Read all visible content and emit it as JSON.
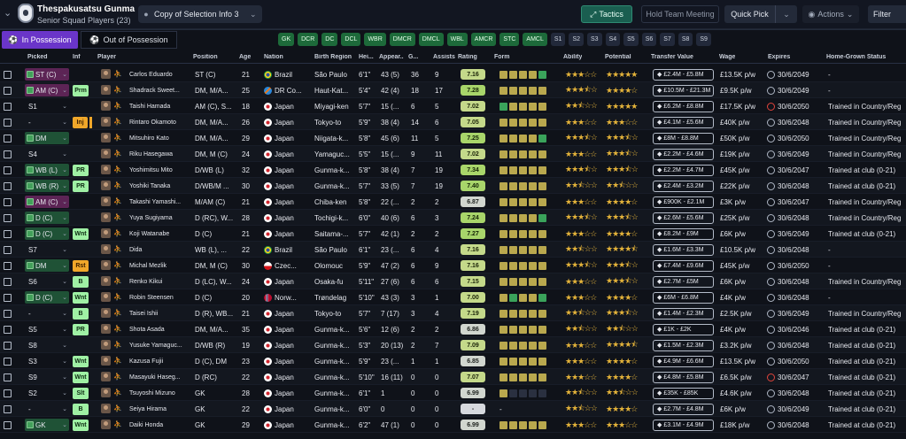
{
  "header": {
    "club": "Thespakusatsu Gunma",
    "squad": "Senior Squad Players (23)",
    "view_selector": "Copy of Selection Info 3",
    "tactics": "Tactics",
    "hold_meeting": "Hold Team Meeting",
    "quick_pick": "Quick Pick",
    "actions": "Actions",
    "filter": "Filter"
  },
  "tabs": {
    "in_possession": "In Possession",
    "out_possession": "Out of Possession"
  },
  "positions_green": [
    "GK",
    "DCR",
    "DC",
    "DCL",
    "WBR",
    "DMCR",
    "DMCL",
    "WBL",
    "AMCR",
    "STC",
    "AMCL"
  ],
  "slots": [
    "S1",
    "S2",
    "S3",
    "S4",
    "S5",
    "S6",
    "S7",
    "S8",
    "S9"
  ],
  "columns": {
    "picked": "Picked",
    "inf": "Inf",
    "player": "Player",
    "position": "Position",
    "age": "Age",
    "nation": "Nation",
    "birth": "Birth Region",
    "height": "Hei...",
    "apps": "Appear...",
    "goals": "G...",
    "assists": "Assists",
    "rating": "Rating",
    "form": "Form",
    "ability": "Ability",
    "potential": "Potential",
    "value": "Transfer Value",
    "wage": "Wage",
    "expires": "Expires",
    "hg": "Home-Grown Status"
  },
  "colors": {
    "ok": "#3aa35b",
    "pick_purple": "#5c2455",
    "pick_green": "#1f5236",
    "inf_green": "#9ff0a4",
    "inf_orange": "#f0a72a",
    "tactics_teal": "#1a5e50",
    "tab_purple": "#6a35c9"
  },
  "rows": [
    {
      "picked": "ST (C)",
      "pick_style": "purple",
      "inf": "",
      "name": "Carlos Eduardo",
      "pos": "ST (C)",
      "age": "21",
      "nation": "Brazil",
      "flag": "br",
      "birth": "São Paulo",
      "height": "6'1\"",
      "apps": "43 (5)",
      "goals": "36",
      "assists": "9",
      "rating": "7.16",
      "form": [
        "y",
        "y",
        "y",
        "y",
        "g"
      ],
      "ab": 3,
      "pot": 5,
      "value": "£2.4M - £5.8M",
      "wage": "£13.5K p/w",
      "exp": "30/6/2049",
      "exp_red": false,
      "hg": "-"
    },
    {
      "picked": "AM (C)",
      "pick_style": "purple",
      "inf": "Prm",
      "name": "Shadrack Sweet...",
      "pos": "DM, M/A...",
      "age": "25",
      "nation": "DR Co...",
      "flag": "cd",
      "birth": "Haut-Kat...",
      "height": "5'4\"",
      "apps": "42 (4)",
      "goals": "18",
      "assists": "17",
      "rating": "7.28",
      "form": [
        "y",
        "y",
        "y",
        "y",
        "y"
      ],
      "ab": 3.5,
      "pot": 4,
      "value": "£10.5M - £21.3M",
      "wage": "£9.5K p/w",
      "exp": "30/6/2049",
      "exp_red": false,
      "hg": "-"
    },
    {
      "picked": "S1",
      "pick_style": "none",
      "inf": "",
      "name": "Taishi Hamada",
      "pos": "AM (C), S...",
      "age": "18",
      "nation": "Japan",
      "flag": "jp",
      "birth": "Miyagi-ken",
      "height": "5'7\"",
      "apps": "15 (...",
      "goals": "6",
      "assists": "5",
      "rating": "7.02",
      "form": [
        "g",
        "y",
        "y",
        "y",
        "y"
      ],
      "ab": 2.5,
      "pot": 5,
      "value": "£6.2M - £8.8M",
      "wage": "£17.5K p/w",
      "exp": "30/6/2050",
      "exp_red": true,
      "hg": "Trained in Country/Reg"
    },
    {
      "picked": "-",
      "pick_style": "none",
      "inf": "Inj",
      "name": "Rintaro Okamoto",
      "pos": "DM, M/A...",
      "age": "26",
      "nation": "Japan",
      "flag": "jp",
      "birth": "Tokyo-to",
      "height": "5'9\"",
      "apps": "38 (4)",
      "goals": "14",
      "assists": "6",
      "rating": "7.05",
      "form": [
        "y",
        "y",
        "y",
        "y",
        "y"
      ],
      "ab": 3,
      "pot": 3,
      "value": "£4.1M - £5.6M",
      "wage": "£40K p/w",
      "exp": "30/6/2048",
      "exp_red": false,
      "hg": "Trained in Country/Reg"
    },
    {
      "picked": "DM",
      "pick_style": "green",
      "inf": "",
      "name": "Mitsuhiro Kato",
      "pos": "DM, M/A...",
      "age": "29",
      "nation": "Japan",
      "flag": "jp",
      "birth": "Niigata-k...",
      "height": "5'8\"",
      "apps": "45 (6)",
      "goals": "11",
      "assists": "5",
      "rating": "7.25",
      "form": [
        "y",
        "y",
        "y",
        "y",
        "g"
      ],
      "ab": 3.5,
      "pot": 3.5,
      "value": "£8M - £8.8M",
      "wage": "£50K p/w",
      "exp": "30/6/2050",
      "exp_red": false,
      "hg": "Trained in Country/Reg"
    },
    {
      "picked": "S4",
      "pick_style": "none",
      "inf": "",
      "name": "Riku Hasegawa",
      "pos": "DM, M (C)",
      "age": "24",
      "nation": "Japan",
      "flag": "jp",
      "birth": "Yamaguc...",
      "height": "5'5\"",
      "apps": "15 (...",
      "goals": "9",
      "assists": "11",
      "rating": "7.02",
      "form": [
        "y",
        "y",
        "y",
        "y",
        "y"
      ],
      "ab": 3,
      "pot": 3.5,
      "value": "£2.2M - £4.6M",
      "wage": "£19K p/w",
      "exp": "30/6/2049",
      "exp_red": false,
      "hg": "Trained in Country/Reg"
    },
    {
      "picked": "WB (L)",
      "pick_style": "green",
      "inf": "PR",
      "name": "Yoshimitsu Mito",
      "pos": "D/WB (L)",
      "age": "32",
      "nation": "Japan",
      "flag": "jp",
      "birth": "Gunma-k...",
      "height": "5'8\"",
      "apps": "38 (4)",
      "goals": "7",
      "assists": "19",
      "rating": "7.34",
      "form": [
        "y",
        "y",
        "y",
        "y",
        "y"
      ],
      "ab": 3.5,
      "pot": 3.5,
      "value": "£2.2M - £4.7M",
      "wage": "£45K p/w",
      "exp": "30/6/2047",
      "exp_red": false,
      "hg": "Trained at club (0-21)"
    },
    {
      "picked": "WB (R)",
      "pick_style": "green",
      "inf": "PR",
      "name": "Yoshiki Tanaka",
      "pos": "D/WB/M ...",
      "age": "30",
      "nation": "Japan",
      "flag": "jp",
      "birth": "Gunma-k...",
      "height": "5'7\"",
      "apps": "33 (5)",
      "goals": "7",
      "assists": "19",
      "rating": "7.40",
      "form": [
        "y",
        "y",
        "y",
        "y",
        "y"
      ],
      "ab": 2.5,
      "pot": 2.5,
      "value": "£2.4M - £3.2M",
      "wage": "£22K p/w",
      "exp": "30/6/2048",
      "exp_red": false,
      "hg": "Trained at club (0-21)"
    },
    {
      "picked": "AM (C)",
      "pick_style": "purple",
      "inf": "",
      "name": "Takashi Yamashi...",
      "pos": "M/AM (C)",
      "age": "21",
      "nation": "Japan",
      "flag": "jp",
      "birth": "Chiba-ken",
      "height": "5'8\"",
      "apps": "22 (...",
      "goals": "2",
      "assists": "2",
      "rating": "6.87",
      "form": [
        "y",
        "y",
        "y",
        "y",
        "y"
      ],
      "ab": 3,
      "pot": 4,
      "value": "£900K - £2.1M",
      "wage": "£3K p/w",
      "exp": "30/6/2047",
      "exp_red": false,
      "hg": "Trained in Country/Reg"
    },
    {
      "picked": "D (C)",
      "pick_style": "green",
      "inf": "",
      "name": "Yuya Sugiyama",
      "pos": "D (RC), W...",
      "age": "28",
      "nation": "Japan",
      "flag": "jp",
      "birth": "Tochigi-k...",
      "height": "6'0\"",
      "apps": "40 (6)",
      "goals": "6",
      "assists": "3",
      "rating": "7.24",
      "form": [
        "y",
        "y",
        "y",
        "y",
        "g"
      ],
      "ab": 3.5,
      "pot": 3.5,
      "value": "£2.6M - £5.6M",
      "wage": "£25K p/w",
      "exp": "30/6/2048",
      "exp_red": false,
      "hg": "Trained in Country/Reg"
    },
    {
      "picked": "D (C)",
      "pick_style": "green",
      "inf": "Wnt",
      "name": "Koji Watanabe",
      "pos": "D (C)",
      "age": "21",
      "nation": "Japan",
      "flag": "jp",
      "birth": "Saitama-...",
      "height": "5'7\"",
      "apps": "42 (1)",
      "goals": "2",
      "assists": "2",
      "rating": "7.27",
      "form": [
        "y",
        "y",
        "y",
        "y",
        "y"
      ],
      "ab": 3,
      "pot": 4,
      "value": "£8.2M - £9M",
      "wage": "£6K p/w",
      "exp": "30/6/2049",
      "exp_red": false,
      "hg": "Trained at club (0-21)"
    },
    {
      "picked": "S7",
      "pick_style": "none",
      "inf": "",
      "name": "Dida",
      "pos": "WB (L), ...",
      "age": "22",
      "nation": "Brazil",
      "flag": "br",
      "birth": "São Paulo",
      "height": "6'1\"",
      "apps": "23 (...",
      "goals": "6",
      "assists": "4",
      "rating": "7.16",
      "form": [
        "y",
        "y",
        "y",
        "y",
        "y"
      ],
      "ab": 2.5,
      "pot": 4.5,
      "value": "£1.6M - £3.3M",
      "wage": "£10.5K p/w",
      "exp": "30/6/2048",
      "exp_red": false,
      "hg": "-"
    },
    {
      "picked": "DM",
      "pick_style": "green",
      "inf": "Rst",
      "name": "Michal Mezlik",
      "pos": "DM, M (C)",
      "age": "30",
      "nation": "Czec...",
      "flag": "cz",
      "birth": "Olomouc",
      "height": "5'9\"",
      "apps": "47 (2)",
      "goals": "6",
      "assists": "9",
      "rating": "7.16",
      "form": [
        "y",
        "y",
        "y",
        "y",
        "y"
      ],
      "ab": 3.5,
      "pot": 3.5,
      "value": "£7.4M - £9.6M",
      "wage": "£45K p/w",
      "exp": "30/6/2050",
      "exp_red": false,
      "hg": "-"
    },
    {
      "picked": "S6",
      "pick_style": "none",
      "inf": "B",
      "name": "Renko Kikui",
      "pos": "D (LC), W...",
      "age": "24",
      "nation": "Japan",
      "flag": "jp",
      "birth": "Osaka-fu",
      "height": "5'11\"",
      "apps": "27 (6)",
      "goals": "6",
      "assists": "6",
      "rating": "7.15",
      "form": [
        "y",
        "y",
        "y",
        "y",
        "y"
      ],
      "ab": 3,
      "pot": 3.5,
      "value": "£2.7M - £5M",
      "wage": "£6K p/w",
      "exp": "30/6/2048",
      "exp_red": false,
      "hg": "Trained in Country/Reg"
    },
    {
      "picked": "D (C)",
      "pick_style": "green",
      "inf": "Wnt",
      "name": "Robin Steensen",
      "pos": "D (C)",
      "age": "20",
      "nation": "Norw...",
      "flag": "no",
      "birth": "Trøndelag",
      "height": "5'10\"",
      "apps": "43 (3)",
      "goals": "3",
      "assists": "1",
      "rating": "7.00",
      "form": [
        "y",
        "g",
        "y",
        "y",
        "g"
      ],
      "ab": 3,
      "pot": 4,
      "value": "£6M - £6.8M",
      "wage": "£4K p/w",
      "exp": "30/6/2048",
      "exp_red": false,
      "hg": "-"
    },
    {
      "picked": "-",
      "pick_style": "none",
      "inf": "B",
      "name": "Taisei Ishii",
      "pos": "D (R), WB...",
      "age": "21",
      "nation": "Japan",
      "flag": "jp",
      "birth": "Tokyo-to",
      "height": "5'7\"",
      "apps": "7 (17)",
      "goals": "3",
      "assists": "4",
      "rating": "7.19",
      "form": [
        "y",
        "y",
        "y",
        "y",
        "y"
      ],
      "ab": 2.5,
      "pot": 3.5,
      "value": "£1.4M - £2.3M",
      "wage": "£2.5K p/w",
      "exp": "30/6/2049",
      "exp_red": false,
      "hg": "Trained in Country/Reg"
    },
    {
      "picked": "S5",
      "pick_style": "none",
      "inf": "PR",
      "name": "Shota Asada",
      "pos": "DM, M/A...",
      "age": "35",
      "nation": "Japan",
      "flag": "jp",
      "birth": "Gunma-k...",
      "height": "5'6\"",
      "apps": "12 (6)",
      "goals": "2",
      "assists": "2",
      "rating": "6.86",
      "form": [
        "y",
        "y",
        "y",
        "y",
        "y"
      ],
      "ab": 2.5,
      "pot": 2.5,
      "value": "£1K - £2K",
      "wage": "£4K p/w",
      "exp": "30/6/2046",
      "exp_red": false,
      "hg": "Trained at club (0-21)"
    },
    {
      "picked": "S8",
      "pick_style": "none",
      "inf": "",
      "name": "Yusuke Yamaguc...",
      "pos": "D/WB (R)",
      "age": "19",
      "nation": "Japan",
      "flag": "jp",
      "birth": "Gunma-k...",
      "height": "5'3\"",
      "apps": "20 (13)",
      "goals": "2",
      "assists": "7",
      "rating": "7.09",
      "form": [
        "y",
        "y",
        "y",
        "y",
        "y"
      ],
      "ab": 3,
      "pot": 4.5,
      "value": "£1.5M - £2.3M",
      "wage": "£3.2K p/w",
      "exp": "30/6/2048",
      "exp_red": false,
      "hg": "Trained at club (0-21)"
    },
    {
      "picked": "S3",
      "pick_style": "none",
      "inf": "Wnt",
      "name": "Kazusa Fujii",
      "pos": "D (C), DM",
      "age": "23",
      "nation": "Japan",
      "flag": "jp",
      "birth": "Gunma-k...",
      "height": "5'9\"",
      "apps": "23 (...",
      "goals": "1",
      "assists": "1",
      "rating": "6.85",
      "form": [
        "y",
        "y",
        "y",
        "y",
        "y"
      ],
      "ab": 3,
      "pot": 4,
      "value": "£4.9M - £6.6M",
      "wage": "£13.5K p/w",
      "exp": "30/6/2050",
      "exp_red": false,
      "hg": "Trained at club (0-21)"
    },
    {
      "picked": "S9",
      "pick_style": "none",
      "inf": "Wnt",
      "name": "Masayuki Haseg...",
      "pos": "D (RC)",
      "age": "22",
      "nation": "Japan",
      "flag": "jp",
      "birth": "Gunma-k...",
      "height": "5'10\"",
      "apps": "16 (11)",
      "goals": "0",
      "assists": "0",
      "rating": "7.07",
      "form": [
        "y",
        "y",
        "y",
        "y",
        "y"
      ],
      "ab": 3,
      "pot": 4,
      "value": "£4.8M - £5.8M",
      "wage": "£6.5K p/w",
      "exp": "30/6/2047",
      "exp_red": true,
      "hg": "Trained at club (0-21)"
    },
    {
      "picked": "S2",
      "pick_style": "none",
      "inf": "Slt",
      "name": "Tsuyoshi Mizuno",
      "pos": "GK",
      "age": "28",
      "nation": "Japan",
      "flag": "jp",
      "birth": "Gunma-k...",
      "height": "6'1\"",
      "apps": "1",
      "goals": "0",
      "assists": "0",
      "rating": "6.99",
      "form": [
        "y",
        "",
        "",
        "",
        ""
      ],
      "ab": 2.5,
      "pot": 2.5,
      "value": "£35K - £85K",
      "wage": "£4.6K p/w",
      "exp": "30/6/2048",
      "exp_red": false,
      "hg": "Trained at club (0-21)"
    },
    {
      "picked": "-",
      "pick_style": "none",
      "inf": "B",
      "name": "Seiya Hirama",
      "pos": "GK",
      "age": "22",
      "nation": "Japan",
      "flag": "jp",
      "birth": "Gunma-k...",
      "height": "6'0\"",
      "apps": "0",
      "goals": "0",
      "assists": "0",
      "rating": "-",
      "form": [
        "",
        "",
        "",
        "",
        ""
      ],
      "ab": 2.5,
      "pot": 4,
      "value": "£2.7M - £4.8M",
      "wage": "£6K p/w",
      "exp": "30/6/2049",
      "exp_red": false,
      "hg": "Trained at club (0-21)"
    },
    {
      "picked": "GK",
      "pick_style": "green",
      "inf": "Wnt",
      "name": "Daiki Honda",
      "pos": "GK",
      "age": "29",
      "nation": "Japan",
      "flag": "jp",
      "birth": "Gunma-k...",
      "height": "6'2\"",
      "apps": "47 (1)",
      "goals": "0",
      "assists": "0",
      "rating": "6.99",
      "form": [
        "y",
        "y",
        "y",
        "y",
        "y"
      ],
      "ab": 3,
      "pot": 3,
      "value": "£3.1M - £4.9M",
      "wage": "£18K p/w",
      "exp": "30/6/2048",
      "exp_red": false,
      "hg": "Trained at club (0-21)"
    }
  ]
}
